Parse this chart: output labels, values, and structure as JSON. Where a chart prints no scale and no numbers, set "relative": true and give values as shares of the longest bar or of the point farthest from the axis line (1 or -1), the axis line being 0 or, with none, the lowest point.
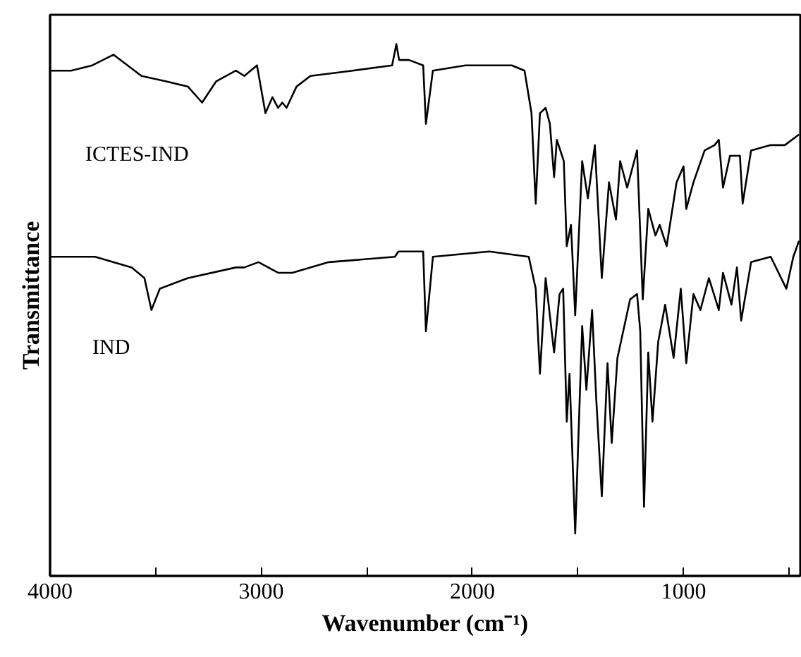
{
  "chart_data": {
    "type": "line",
    "relative": true,
    "xlabel": "Wavenumber (cm⁻¹)",
    "ylabel": "Transmittance",
    "xlim": [
      4000,
      447
    ],
    "xticks": [
      4000,
      {
        "value": 3500,
        "label": null
      },
      3000,
      {
        "value": 2500,
        "label": null
      },
      2000,
      {
        "value": 1500,
        "label": null
      },
      1000,
      {
        "value": 500,
        "label": null
      }
    ],
    "tick_labels": "x",
    "grid": false,
    "marker": "none",
    "line_style": "solid",
    "series": [
      {
        "name": "ICTES-IND",
        "color": "#000000",
        "x": [
          4000,
          3900,
          3800,
          3700,
          3567,
          3453,
          3347,
          3280,
          3213,
          3120,
          3080,
          3020,
          2980,
          2947,
          2920,
          2900,
          2880,
          2833,
          2767,
          2567,
          2380,
          2360,
          2347,
          2300,
          2233,
          2220,
          2187,
          2033,
          1813,
          1753,
          1720,
          1700,
          1680,
          1653,
          1633,
          1613,
          1600,
          1567,
          1553,
          1533,
          1513,
          1480,
          1453,
          1420,
          1387,
          1353,
          1320,
          1300,
          1267,
          1220,
          1193,
          1167,
          1133,
          1113,
          1080,
          1033,
          1000,
          987,
          953,
          900,
          853,
          833,
          813,
          780,
          733,
          720,
          680,
          587,
          520,
          453
        ],
        "values": [
          0.95,
          0.95,
          0.96,
          0.98,
          0.94,
          0.93,
          0.92,
          0.89,
          0.93,
          0.95,
          0.94,
          0.96,
          0.87,
          0.9,
          0.88,
          0.89,
          0.88,
          0.92,
          0.94,
          0.95,
          0.96,
          1.0,
          0.97,
          0.97,
          0.96,
          0.85,
          0.95,
          0.96,
          0.96,
          0.95,
          0.87,
          0.7,
          0.87,
          0.88,
          0.85,
          0.75,
          0.82,
          0.78,
          0.62,
          0.66,
          0.49,
          0.78,
          0.71,
          0.81,
          0.56,
          0.74,
          0.67,
          0.78,
          0.73,
          0.8,
          0.52,
          0.69,
          0.64,
          0.66,
          0.62,
          0.74,
          0.77,
          0.69,
          0.74,
          0.8,
          0.81,
          0.82,
          0.73,
          0.79,
          0.79,
          0.7,
          0.8,
          0.81,
          0.81,
          0.83
        ]
      },
      {
        "name": "IND",
        "color": "#000000",
        "x": [
          4000,
          3787,
          3613,
          3553,
          3520,
          3480,
          3347,
          3120,
          3080,
          3013,
          2920,
          2853,
          2680,
          2367,
          2350,
          2233,
          2220,
          2187,
          1920,
          1733,
          1700,
          1680,
          1653,
          1613,
          1587,
          1570,
          1553,
          1540,
          1513,
          1480,
          1460,
          1433,
          1413,
          1387,
          1360,
          1340,
          1313,
          1253,
          1220,
          1205,
          1187,
          1167,
          1147,
          1120,
          1087,
          1047,
          1013,
          987,
          953,
          920,
          880,
          833,
          813,
          773,
          747,
          727,
          680,
          587,
          513,
          480,
          453
        ],
        "values": [
          0.6,
          0.6,
          0.58,
          0.56,
          0.5,
          0.54,
          0.56,
          0.58,
          0.58,
          0.59,
          0.57,
          0.57,
          0.59,
          0.6,
          0.61,
          0.61,
          0.46,
          0.6,
          0.61,
          0.6,
          0.54,
          0.38,
          0.56,
          0.42,
          0.53,
          0.54,
          0.29,
          0.38,
          0.08,
          0.47,
          0.35,
          0.5,
          0.33,
          0.15,
          0.4,
          0.25,
          0.41,
          0.52,
          0.53,
          0.46,
          0.13,
          0.42,
          0.29,
          0.44,
          0.51,
          0.41,
          0.54,
          0.4,
          0.53,
          0.5,
          0.56,
          0.5,
          0.57,
          0.51,
          0.58,
          0.48,
          0.59,
          0.6,
          0.54,
          0.6,
          0.63
        ]
      }
    ]
  }
}
